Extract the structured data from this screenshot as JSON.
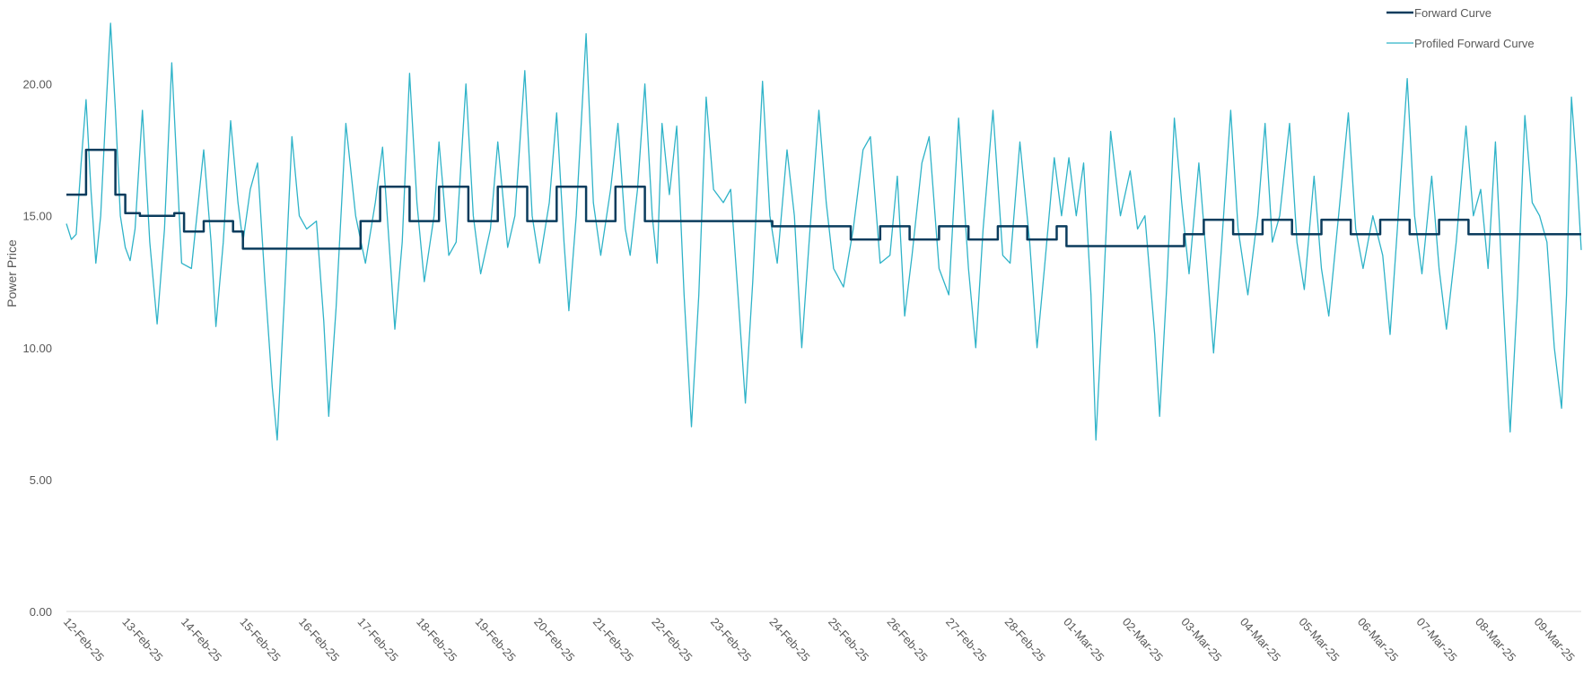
{
  "chart_data": {
    "type": "line",
    "ylabel": "Power Price",
    "xlabel": "",
    "ylim": [
      0,
      22.5
    ],
    "y_ticks": [
      "0.00",
      "5.00",
      "10.00",
      "15.00",
      "20.00"
    ],
    "x_ticks": [
      "12-Feb-25",
      "13-Feb-25",
      "14-Feb-25",
      "15-Feb-25",
      "16-Feb-25",
      "17-Feb-25",
      "18-Feb-25",
      "19-Feb-25",
      "20-Feb-25",
      "21-Feb-25",
      "22-Feb-25",
      "23-Feb-25",
      "24-Feb-25",
      "25-Feb-25",
      "26-Feb-25",
      "27-Feb-25",
      "28-Feb-25",
      "01-Mar-25",
      "02-Mar-25",
      "03-Mar-25",
      "04-Mar-25",
      "05-Mar-25",
      "06-Mar-25",
      "07-Mar-25",
      "08-Mar-25",
      "09-Mar-25"
    ],
    "x_range": [
      "2025-02-12 00:00",
      "2025-03-09 18:00"
    ],
    "grid": false,
    "legend_position": "top-right",
    "series": [
      {
        "name": "Forward Curve",
        "color": "#0b3c5d",
        "step": true,
        "points": [
          [
            "2025-02-12 00:00",
            15.8
          ],
          [
            "2025-02-12 08:00",
            17.5
          ],
          [
            "2025-02-12 20:00",
            15.8
          ],
          [
            "2025-02-13 00:00",
            15.1
          ],
          [
            "2025-02-13 06:00",
            15.0
          ],
          [
            "2025-02-13 20:00",
            15.1
          ],
          [
            "2025-02-14 00:00",
            14.4
          ],
          [
            "2025-02-14 08:00",
            14.8
          ],
          [
            "2025-02-14 20:00",
            14.4
          ],
          [
            "2025-02-15 00:00",
            13.75
          ],
          [
            "2025-02-17 00:00",
            14.8
          ],
          [
            "2025-02-17 08:00",
            16.1
          ],
          [
            "2025-02-17 20:00",
            14.8
          ],
          [
            "2025-02-18 08:00",
            16.1
          ],
          [
            "2025-02-18 20:00",
            14.8
          ],
          [
            "2025-02-19 08:00",
            16.1
          ],
          [
            "2025-02-19 20:00",
            14.8
          ],
          [
            "2025-02-20 08:00",
            16.1
          ],
          [
            "2025-02-20 20:00",
            14.8
          ],
          [
            "2025-02-21 08:00",
            16.1
          ],
          [
            "2025-02-21 20:00",
            14.8
          ],
          [
            "2025-02-24 00:00",
            14.6
          ],
          [
            "2025-02-25 08:00",
            14.1
          ],
          [
            "2025-02-25 20:00",
            14.6
          ],
          [
            "2025-02-26 08:00",
            14.1
          ],
          [
            "2025-02-26 20:00",
            14.6
          ],
          [
            "2025-02-27 08:00",
            14.1
          ],
          [
            "2025-02-27 20:00",
            14.6
          ],
          [
            "2025-02-28 08:00",
            14.1
          ],
          [
            "2025-02-28 20:00",
            14.6
          ],
          [
            "2025-03-01 00:00",
            13.85
          ],
          [
            "2025-03-03 00:00",
            14.3
          ],
          [
            "2025-03-03 08:00",
            14.85
          ],
          [
            "2025-03-03 20:00",
            14.3
          ],
          [
            "2025-03-04 08:00",
            14.85
          ],
          [
            "2025-03-04 20:00",
            14.3
          ],
          [
            "2025-03-05 08:00",
            14.85
          ],
          [
            "2025-03-05 20:00",
            14.3
          ],
          [
            "2025-03-06 08:00",
            14.85
          ],
          [
            "2025-03-06 20:00",
            14.3
          ],
          [
            "2025-03-07 08:00",
            14.85
          ],
          [
            "2025-03-07 20:00",
            14.3
          ],
          [
            "2025-03-09 18:00",
            14.3
          ]
        ]
      },
      {
        "name": "Profiled Forward Curve",
        "color": "#2fb3c8",
        "points": [
          [
            "2025-02-12 00:00",
            14.7
          ],
          [
            "2025-02-12 02:00",
            14.1
          ],
          [
            "2025-02-12 04:00",
            14.3
          ],
          [
            "2025-02-12 06:00",
            17.0
          ],
          [
            "2025-02-12 08:00",
            19.4
          ],
          [
            "2025-02-12 10:00",
            16.0
          ],
          [
            "2025-02-12 12:00",
            13.2
          ],
          [
            "2025-02-12 14:00",
            15.0
          ],
          [
            "2025-02-12 16:00",
            18.8
          ],
          [
            "2025-02-12 18:00",
            22.3
          ],
          [
            "2025-02-12 20:00",
            19.0
          ],
          [
            "2025-02-12 22:00",
            15.0
          ],
          [
            "2025-02-13 00:00",
            13.8
          ],
          [
            "2025-02-13 02:00",
            13.3
          ],
          [
            "2025-02-13 04:00",
            14.5
          ],
          [
            "2025-02-13 07:00",
            19.0
          ],
          [
            "2025-02-13 10:00",
            14.0
          ],
          [
            "2025-02-13 13:00",
            10.9
          ],
          [
            "2025-02-13 16:00",
            14.5
          ],
          [
            "2025-02-13 19:00",
            20.8
          ],
          [
            "2025-02-13 21:00",
            17.0
          ],
          [
            "2025-02-13 23:00",
            13.2
          ],
          [
            "2025-02-14 03:00",
            13.0
          ],
          [
            "2025-02-14 08:00",
            17.5
          ],
          [
            "2025-02-14 11:00",
            14.0
          ],
          [
            "2025-02-14 13:00",
            10.8
          ],
          [
            "2025-02-14 16:00",
            14.0
          ],
          [
            "2025-02-14 19:00",
            18.6
          ],
          [
            "2025-02-14 22:00",
            15.5
          ],
          [
            "2025-02-15 00:00",
            14.0
          ],
          [
            "2025-02-15 03:00",
            16.0
          ],
          [
            "2025-02-15 06:00",
            17.0
          ],
          [
            "2025-02-15 09:00",
            12.5
          ],
          [
            "2025-02-15 12:00",
            8.5
          ],
          [
            "2025-02-15 14:00",
            6.5
          ],
          [
            "2025-02-15 17:00",
            12.0
          ],
          [
            "2025-02-15 20:00",
            18.0
          ],
          [
            "2025-02-15 23:00",
            15.0
          ],
          [
            "2025-02-16 02:00",
            14.5
          ],
          [
            "2025-02-16 06:00",
            14.8
          ],
          [
            "2025-02-16 09:00",
            11.0
          ],
          [
            "2025-02-16 11:00",
            7.4
          ],
          [
            "2025-02-16 14:00",
            11.5
          ],
          [
            "2025-02-16 18:00",
            18.5
          ],
          [
            "2025-02-16 22:00",
            15.0
          ],
          [
            "2025-02-17 02:00",
            13.2
          ],
          [
            "2025-02-17 06:00",
            15.5
          ],
          [
            "2025-02-17 09:00",
            17.6
          ],
          [
            "2025-02-17 12:00",
            13.5
          ],
          [
            "2025-02-17 14:00",
            10.7
          ],
          [
            "2025-02-17 17:00",
            14.0
          ],
          [
            "2025-02-17 20:00",
            20.4
          ],
          [
            "2025-02-17 23:00",
            15.5
          ],
          [
            "2025-02-18 02:00",
            12.5
          ],
          [
            "2025-02-18 06:00",
            15.0
          ],
          [
            "2025-02-18 08:00",
            17.8
          ],
          [
            "2025-02-18 12:00",
            13.5
          ],
          [
            "2025-02-18 15:00",
            14.0
          ],
          [
            "2025-02-18 19:00",
            20.0
          ],
          [
            "2025-02-18 22:00",
            15.0
          ],
          [
            "2025-02-19 01:00",
            12.8
          ],
          [
            "2025-02-19 05:00",
            14.5
          ],
          [
            "2025-02-19 08:00",
            17.8
          ],
          [
            "2025-02-19 12:00",
            13.8
          ],
          [
            "2025-02-19 15:00",
            15.0
          ],
          [
            "2025-02-19 19:00",
            20.5
          ],
          [
            "2025-02-19 22:00",
            15.0
          ],
          [
            "2025-02-20 01:00",
            13.2
          ],
          [
            "2025-02-20 05:00",
            15.5
          ],
          [
            "2025-02-20 08:00",
            18.9
          ],
          [
            "2025-02-20 11:00",
            14.0
          ],
          [
            "2025-02-20 13:00",
            11.4
          ],
          [
            "2025-02-20 16:00",
            15.0
          ],
          [
            "2025-02-20 20:00",
            21.9
          ],
          [
            "2025-02-20 23:00",
            15.5
          ],
          [
            "2025-02-21 02:00",
            13.5
          ],
          [
            "2025-02-21 06:00",
            16.0
          ],
          [
            "2025-02-21 09:00",
            18.5
          ],
          [
            "2025-02-21 12:00",
            14.5
          ],
          [
            "2025-02-21 14:00",
            13.5
          ],
          [
            "2025-02-21 17:00",
            16.0
          ],
          [
            "2025-02-21 20:00",
            20.0
          ],
          [
            "2025-02-21 23:00",
            15.0
          ],
          [
            "2025-02-22 01:00",
            13.2
          ],
          [
            "2025-02-22 03:00",
            18.5
          ],
          [
            "2025-02-22 06:00",
            15.8
          ],
          [
            "2025-02-22 09:00",
            18.4
          ],
          [
            "2025-02-22 12:00",
            12.0
          ],
          [
            "2025-02-22 15:00",
            7.0
          ],
          [
            "2025-02-22 18:00",
            12.0
          ],
          [
            "2025-02-22 21:00",
            19.5
          ],
          [
            "2025-02-23 00:00",
            16.0
          ],
          [
            "2025-02-23 04:00",
            15.5
          ],
          [
            "2025-02-23 07:00",
            16.0
          ],
          [
            "2025-02-23 10:00",
            12.0
          ],
          [
            "2025-02-23 13:00",
            7.9
          ],
          [
            "2025-02-23 16:00",
            12.5
          ],
          [
            "2025-02-23 20:00",
            20.1
          ],
          [
            "2025-02-23 23:00",
            15.0
          ],
          [
            "2025-02-24 02:00",
            13.2
          ],
          [
            "2025-02-24 06:00",
            17.5
          ],
          [
            "2025-02-24 09:00",
            15.0
          ],
          [
            "2025-02-24 12:00",
            10.0
          ],
          [
            "2025-02-24 15:00",
            14.0
          ],
          [
            "2025-02-24 19:00",
            19.0
          ],
          [
            "2025-02-24 22:00",
            15.5
          ],
          [
            "2025-02-25 01:00",
            13.0
          ],
          [
            "2025-02-25 05:00",
            12.3
          ],
          [
            "2025-02-25 09:00",
            14.5
          ],
          [
            "2025-02-25 13:00",
            17.5
          ],
          [
            "2025-02-25 16:00",
            18.0
          ],
          [
            "2025-02-25 20:00",
            13.2
          ],
          [
            "2025-02-26 00:00",
            13.5
          ],
          [
            "2025-02-26 03:00",
            16.5
          ],
          [
            "2025-02-26 06:00",
            11.2
          ],
          [
            "2025-02-26 09:00",
            13.5
          ],
          [
            "2025-02-26 13:00",
            17.0
          ],
          [
            "2025-02-26 16:00",
            18.0
          ],
          [
            "2025-02-26 20:00",
            13.0
          ],
          [
            "2025-02-27 00:00",
            12.0
          ],
          [
            "2025-02-27 04:00",
            18.7
          ],
          [
            "2025-02-27 08:00",
            13.0
          ],
          [
            "2025-02-27 11:00",
            10.0
          ],
          [
            "2025-02-27 14:00",
            14.5
          ],
          [
            "2025-02-27 18:00",
            19.0
          ],
          [
            "2025-02-27 22:00",
            13.5
          ],
          [
            "2025-02-28 01:00",
            13.2
          ],
          [
            "2025-02-28 05:00",
            17.8
          ],
          [
            "2025-02-28 09:00",
            14.0
          ],
          [
            "2025-02-28 12:00",
            10.0
          ],
          [
            "2025-02-28 15:00",
            13.0
          ],
          [
            "2025-02-28 19:00",
            17.2
          ],
          [
            "2025-02-28 22:00",
            15.0
          ],
          [
            "2025-03-01 01:00",
            17.2
          ],
          [
            "2025-03-01 04:00",
            15.0
          ],
          [
            "2025-03-01 07:00",
            17.0
          ],
          [
            "2025-03-01 10:00",
            12.0
          ],
          [
            "2025-03-01 12:00",
            6.5
          ],
          [
            "2025-03-01 15:00",
            12.0
          ],
          [
            "2025-03-01 18:00",
            18.2
          ],
          [
            "2025-03-01 22:00",
            15.0
          ],
          [
            "2025-03-02 02:00",
            16.7
          ],
          [
            "2025-03-02 05:00",
            14.5
          ],
          [
            "2025-03-02 08:00",
            15.0
          ],
          [
            "2025-03-02 12:00",
            10.5
          ],
          [
            "2025-03-02 14:00",
            7.4
          ],
          [
            "2025-03-02 17:00",
            12.5
          ],
          [
            "2025-03-02 20:00",
            18.7
          ],
          [
            "2025-03-02 23:00",
            15.5
          ],
          [
            "2025-03-03 02:00",
            12.8
          ],
          [
            "2025-03-03 06:00",
            17.0
          ],
          [
            "2025-03-03 09:00",
            13.5
          ],
          [
            "2025-03-03 12:00",
            9.8
          ],
          [
            "2025-03-03 15:00",
            13.5
          ],
          [
            "2025-03-03 19:00",
            19.0
          ],
          [
            "2025-03-03 22:00",
            14.5
          ],
          [
            "2025-03-04 02:00",
            12.0
          ],
          [
            "2025-03-04 06:00",
            15.0
          ],
          [
            "2025-03-04 09:00",
            18.5
          ],
          [
            "2025-03-04 12:00",
            14.0
          ],
          [
            "2025-03-04 15:00",
            15.0
          ],
          [
            "2025-03-04 19:00",
            18.5
          ],
          [
            "2025-03-04 22:00",
            14.0
          ],
          [
            "2025-03-05 01:00",
            12.2
          ],
          [
            "2025-03-05 05:00",
            16.5
          ],
          [
            "2025-03-05 08:00",
            13.0
          ],
          [
            "2025-03-05 11:00",
            11.2
          ],
          [
            "2025-03-05 15:00",
            15.0
          ],
          [
            "2025-03-05 19:00",
            18.9
          ],
          [
            "2025-03-05 22:00",
            14.5
          ],
          [
            "2025-03-06 01:00",
            13.0
          ],
          [
            "2025-03-06 05:00",
            15.0
          ],
          [
            "2025-03-06 09:00",
            13.5
          ],
          [
            "2025-03-06 12:00",
            10.5
          ],
          [
            "2025-03-06 15:00",
            14.5
          ],
          [
            "2025-03-06 19:00",
            20.2
          ],
          [
            "2025-03-06 22:00",
            15.0
          ],
          [
            "2025-03-07 01:00",
            12.8
          ],
          [
            "2025-03-07 05:00",
            16.5
          ],
          [
            "2025-03-07 08:00",
            13.0
          ],
          [
            "2025-03-07 11:00",
            10.7
          ],
          [
            "2025-03-07 15:00",
            14.0
          ],
          [
            "2025-03-07 19:00",
            18.4
          ],
          [
            "2025-03-07 22:00",
            15.0
          ],
          [
            "2025-03-08 01:00",
            16.0
          ],
          [
            "2025-03-08 04:00",
            13.0
          ],
          [
            "2025-03-08 07:00",
            17.8
          ],
          [
            "2025-03-08 10:00",
            12.0
          ],
          [
            "2025-03-08 13:00",
            6.8
          ],
          [
            "2025-03-08 16:00",
            12.0
          ],
          [
            "2025-03-08 19:00",
            18.8
          ],
          [
            "2025-03-08 22:00",
            15.5
          ],
          [
            "2025-03-09 01:00",
            15.0
          ],
          [
            "2025-03-09 04:00",
            14.0
          ],
          [
            "2025-03-09 07:00",
            10.0
          ],
          [
            "2025-03-09 10:00",
            7.7
          ],
          [
            "2025-03-09 12:00",
            12.0
          ],
          [
            "2025-03-09 14:00",
            19.5
          ],
          [
            "2025-03-09 16:00",
            17.0
          ],
          [
            "2025-03-09 18:00",
            13.7
          ]
        ]
      }
    ]
  }
}
